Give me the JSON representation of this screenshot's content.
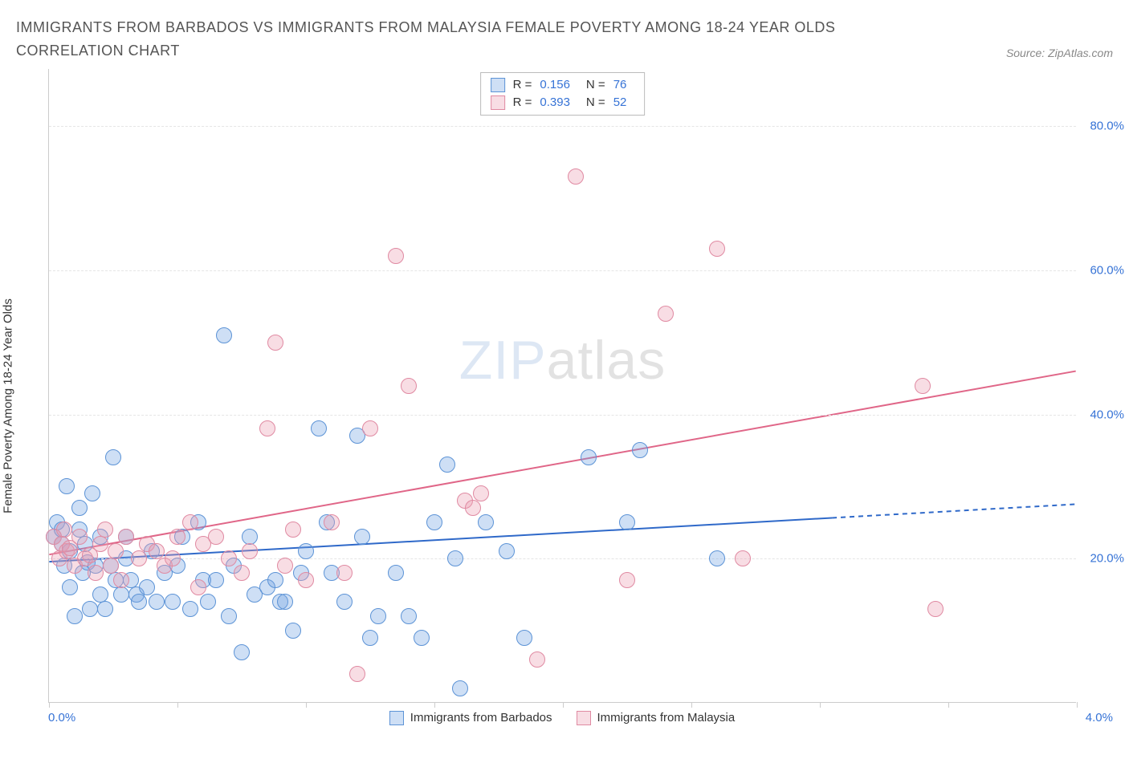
{
  "title": "IMMIGRANTS FROM BARBADOS VS IMMIGRANTS FROM MALAYSIA FEMALE POVERTY AMONG 18-24 YEAR OLDS CORRELATION CHART",
  "source": "Source: ZipAtlas.com",
  "watermark_zip": "ZIP",
  "watermark_atlas": "atlas",
  "chart": {
    "type": "scatter",
    "xlabel": "",
    "ylabel": "Female Poverty Among 18-24 Year Olds",
    "x_min_label": "0.0%",
    "x_max_label": "4.0%",
    "xlim": [
      0,
      4.0
    ],
    "ylim": [
      0,
      88
    ],
    "x_ticks": [
      0,
      0.5,
      1.0,
      1.5,
      2.0,
      2.5,
      3.0,
      3.5,
      4.0
    ],
    "y_ticks": [
      {
        "value": 20,
        "label": "20.0%"
      },
      {
        "value": 40,
        "label": "40.0%"
      },
      {
        "value": 60,
        "label": "60.0%"
      },
      {
        "value": 80,
        "label": "80.0%"
      }
    ],
    "grid_color": "#e5e5e5",
    "axis_color": "#cccccc",
    "tick_label_color": "#3673d6",
    "background_color": "#ffffff",
    "marker_radius": 10,
    "stats_legend": [
      {
        "swatch_fill": "rgba(114,162,225,0.35)",
        "swatch_border": "#5c93d6",
        "R": "0.156",
        "N": "76"
      },
      {
        "swatch_fill": "rgba(236,158,178,0.35)",
        "swatch_border": "#e08aa2",
        "R": "0.393",
        "N": "52"
      }
    ],
    "series": [
      {
        "name": "Immigrants from Barbados",
        "color_fill": "rgba(114,162,225,0.35)",
        "color_border": "#5c93d6",
        "trend": {
          "x1": 0,
          "y1": 19.5,
          "x2": 4.0,
          "y2": 27.5,
          "solid_until_x": 3.05,
          "color": "#2f69c9",
          "width": 2
        },
        "points": [
          [
            0.02,
            23
          ],
          [
            0.03,
            25
          ],
          [
            0.05,
            24
          ],
          [
            0.05,
            22
          ],
          [
            0.06,
            19
          ],
          [
            0.07,
            30
          ],
          [
            0.08,
            21
          ],
          [
            0.08,
            16
          ],
          [
            0.1,
            12
          ],
          [
            0.12,
            27
          ],
          [
            0.12,
            24
          ],
          [
            0.13,
            18
          ],
          [
            0.14,
            22
          ],
          [
            0.15,
            19.5
          ],
          [
            0.16,
            13
          ],
          [
            0.17,
            29
          ],
          [
            0.18,
            19
          ],
          [
            0.2,
            23
          ],
          [
            0.2,
            15
          ],
          [
            0.22,
            13
          ],
          [
            0.24,
            19
          ],
          [
            0.25,
            34
          ],
          [
            0.26,
            17
          ],
          [
            0.28,
            15
          ],
          [
            0.3,
            20
          ],
          [
            0.3,
            23
          ],
          [
            0.32,
            17
          ],
          [
            0.34,
            15
          ],
          [
            0.35,
            14
          ],
          [
            0.38,
            16
          ],
          [
            0.4,
            21
          ],
          [
            0.42,
            14
          ],
          [
            0.45,
            18
          ],
          [
            0.48,
            14
          ],
          [
            0.5,
            19
          ],
          [
            0.52,
            23
          ],
          [
            0.55,
            13
          ],
          [
            0.58,
            25
          ],
          [
            0.6,
            17
          ],
          [
            0.62,
            14
          ],
          [
            0.65,
            17
          ],
          [
            0.68,
            51
          ],
          [
            0.7,
            12
          ],
          [
            0.72,
            19
          ],
          [
            0.75,
            7
          ],
          [
            0.78,
            23
          ],
          [
            0.8,
            15
          ],
          [
            0.85,
            16
          ],
          [
            0.88,
            17
          ],
          [
            0.9,
            14
          ],
          [
            0.92,
            14
          ],
          [
            0.95,
            10
          ],
          [
            0.98,
            18
          ],
          [
            1.0,
            21
          ],
          [
            1.05,
            38
          ],
          [
            1.08,
            25
          ],
          [
            1.1,
            18
          ],
          [
            1.15,
            14
          ],
          [
            1.2,
            37
          ],
          [
            1.22,
            23
          ],
          [
            1.25,
            9
          ],
          [
            1.28,
            12
          ],
          [
            1.35,
            18
          ],
          [
            1.4,
            12
          ],
          [
            1.45,
            9
          ],
          [
            1.5,
            25
          ],
          [
            1.55,
            33
          ],
          [
            1.58,
            20
          ],
          [
            1.6,
            2
          ],
          [
            1.7,
            25
          ],
          [
            1.78,
            21
          ],
          [
            1.85,
            9
          ],
          [
            2.1,
            34
          ],
          [
            2.25,
            25
          ],
          [
            2.3,
            35
          ],
          [
            2.6,
            20
          ]
        ]
      },
      {
        "name": "Immigrants from Malaysia",
        "color_fill": "rgba(236,158,178,0.35)",
        "color_border": "#e08aa2",
        "trend": {
          "x1": 0,
          "y1": 20.5,
          "x2": 4.0,
          "y2": 46.0,
          "solid_until_x": 4.0,
          "color": "#e06688",
          "width": 2
        },
        "points": [
          [
            0.02,
            23
          ],
          [
            0.04,
            20
          ],
          [
            0.05,
            22
          ],
          [
            0.06,
            24
          ],
          [
            0.07,
            21
          ],
          [
            0.08,
            21.5
          ],
          [
            0.1,
            19
          ],
          [
            0.12,
            23
          ],
          [
            0.14,
            20
          ],
          [
            0.16,
            20.5
          ],
          [
            0.18,
            18
          ],
          [
            0.2,
            22
          ],
          [
            0.22,
            24
          ],
          [
            0.24,
            19
          ],
          [
            0.26,
            21
          ],
          [
            0.28,
            17
          ],
          [
            0.3,
            23
          ],
          [
            0.35,
            20
          ],
          [
            0.38,
            22
          ],
          [
            0.42,
            21
          ],
          [
            0.45,
            19
          ],
          [
            0.48,
            20
          ],
          [
            0.5,
            23
          ],
          [
            0.55,
            25
          ],
          [
            0.58,
            16
          ],
          [
            0.6,
            22
          ],
          [
            0.65,
            23
          ],
          [
            0.7,
            20
          ],
          [
            0.75,
            18
          ],
          [
            0.78,
            21
          ],
          [
            0.85,
            38
          ],
          [
            0.88,
            50
          ],
          [
            0.92,
            19
          ],
          [
            0.95,
            24
          ],
          [
            1.0,
            17
          ],
          [
            1.1,
            25
          ],
          [
            1.15,
            18
          ],
          [
            1.2,
            4
          ],
          [
            1.25,
            38
          ],
          [
            1.35,
            62
          ],
          [
            1.4,
            44
          ],
          [
            1.62,
            28
          ],
          [
            1.65,
            27
          ],
          [
            1.68,
            29
          ],
          [
            1.9,
            6
          ],
          [
            2.05,
            73
          ],
          [
            2.25,
            17
          ],
          [
            2.4,
            54
          ],
          [
            2.6,
            63
          ],
          [
            2.7,
            20
          ],
          [
            3.4,
            44
          ],
          [
            3.45,
            13
          ]
        ]
      }
    ],
    "bottom_legend": [
      {
        "label": "Immigrants from Barbados",
        "fill": "rgba(114,162,225,0.35)",
        "border": "#5c93d6"
      },
      {
        "label": "Immigrants from Malaysia",
        "fill": "rgba(236,158,178,0.35)",
        "border": "#e08aa2"
      }
    ]
  }
}
